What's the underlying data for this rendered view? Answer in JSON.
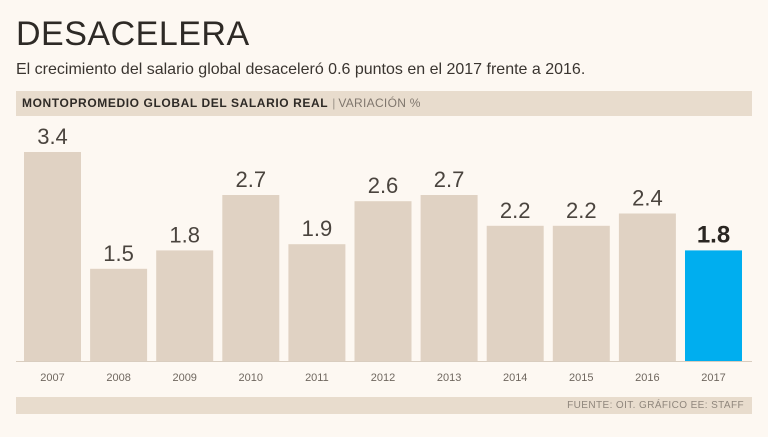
{
  "title": "DESACELERA",
  "subtitle": "El crecimiento del salario global desaceleró 0.6 puntos en el 2017 frente a 2016.",
  "header": {
    "strong": "MONTOPROMEDIO GLOBAL DEL SALARIO REAL",
    "separator": "|",
    "light": "VARIACIÓN %"
  },
  "source": "FUENTE: OIT. GRÁFICO EE: STAFF",
  "colors": {
    "bar": "#e0d2c3",
    "highlight": "#00aeef",
    "background": "#fdf8f2",
    "band": "#e8dccd"
  },
  "chart_data": {
    "type": "bar",
    "title": "MONTOPROMEDIO GLOBAL DEL SALARIO REAL",
    "ylabel": "VARIACIÓN %",
    "xlabel": "",
    "categories": [
      "2007",
      "2008",
      "2009",
      "2010",
      "2011",
      "2012",
      "2013",
      "2014",
      "2015",
      "2016",
      "2017"
    ],
    "values": [
      3.4,
      1.5,
      1.8,
      2.7,
      1.9,
      2.6,
      2.7,
      2.2,
      2.2,
      2.4,
      1.8
    ],
    "labels": [
      "3.4",
      "1.5",
      "1.8",
      "2.7",
      "1.9",
      "2.6",
      "2.7",
      "2.2",
      "2.2",
      "2.4",
      "1.8"
    ],
    "highlight_category": "2017",
    "ylim": [
      0,
      3.4
    ],
    "grid": false,
    "legend": "none"
  }
}
